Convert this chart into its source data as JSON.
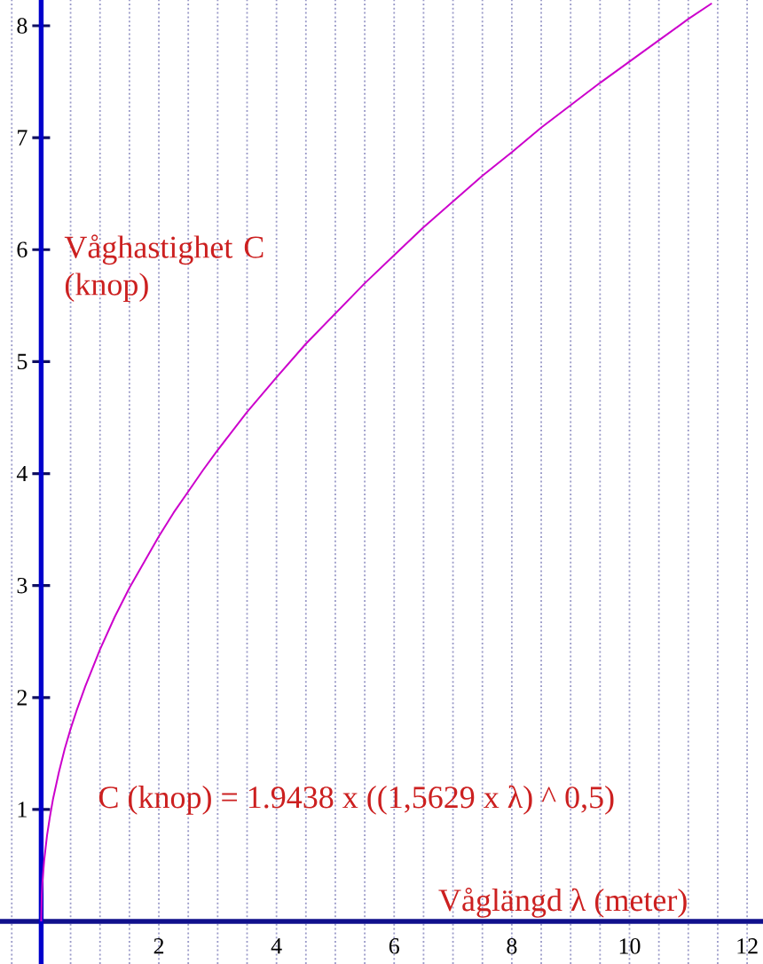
{
  "chart_data": {
    "type": "line",
    "xlabel": "Våglängd λ (meter)",
    "ylabel": "Våghastighet C (knop)",
    "annotations": [
      "C (knop) = 1.9438 x ((1,5629 x λ) ^ 0,5)"
    ],
    "x": [
      0,
      0.01,
      0.02,
      0.05,
      0.1,
      0.15,
      0.2,
      0.3,
      0.4,
      0.5,
      0.6,
      0.75,
      1,
      1.25,
      1.5,
      1.75,
      2,
      2.25,
      2.5,
      2.75,
      3,
      3.5,
      4,
      4.5,
      5,
      5.5,
      6,
      6.5,
      7,
      7.5,
      8,
      8.5,
      9,
      9.5,
      10,
      10.5,
      11,
      11.4
    ],
    "values": [
      0,
      0.24,
      0.34,
      0.54,
      0.77,
      0.94,
      1.09,
      1.33,
      1.54,
      1.72,
      1.88,
      2.1,
      2.43,
      2.72,
      2.98,
      3.21,
      3.44,
      3.65,
      3.84,
      4.03,
      4.21,
      4.55,
      4.86,
      5.16,
      5.43,
      5.7,
      5.95,
      6.2,
      6.43,
      6.66,
      6.87,
      7.09,
      7.29,
      7.49,
      7.68,
      7.87,
      8.06,
      8.2
    ],
    "color": "#cc00cc",
    "xlim": [
      -0.7,
      12.27
    ],
    "ylim": [
      -0.38,
      8.23
    ],
    "xticks": [
      {
        "value": -0.5,
        "label": null
      },
      {
        "value": 0.5,
        "label": null
      },
      {
        "value": 1,
        "label": null
      },
      {
        "value": 1.5,
        "label": null
      },
      2,
      {
        "value": 2.5,
        "label": null
      },
      {
        "value": 3,
        "label": null
      },
      {
        "value": 3.5,
        "label": null
      },
      4,
      {
        "value": 4.5,
        "label": null
      },
      {
        "value": 5,
        "label": null
      },
      {
        "value": 5.5,
        "label": null
      },
      6,
      {
        "value": 6.5,
        "label": null
      },
      {
        "value": 7,
        "label": null
      },
      {
        "value": 7.5,
        "label": null
      },
      8,
      {
        "value": 8.5,
        "label": null
      },
      {
        "value": 9,
        "label": null
      },
      {
        "value": 9.5,
        "label": null
      },
      10,
      {
        "value": 10.5,
        "label": null
      },
      {
        "value": 11,
        "label": null
      },
      {
        "value": 11.5,
        "label": null
      },
      12
    ],
    "yticks": [
      1,
      2,
      3,
      4,
      5,
      6,
      7,
      8
    ],
    "grid": "x"
  }
}
